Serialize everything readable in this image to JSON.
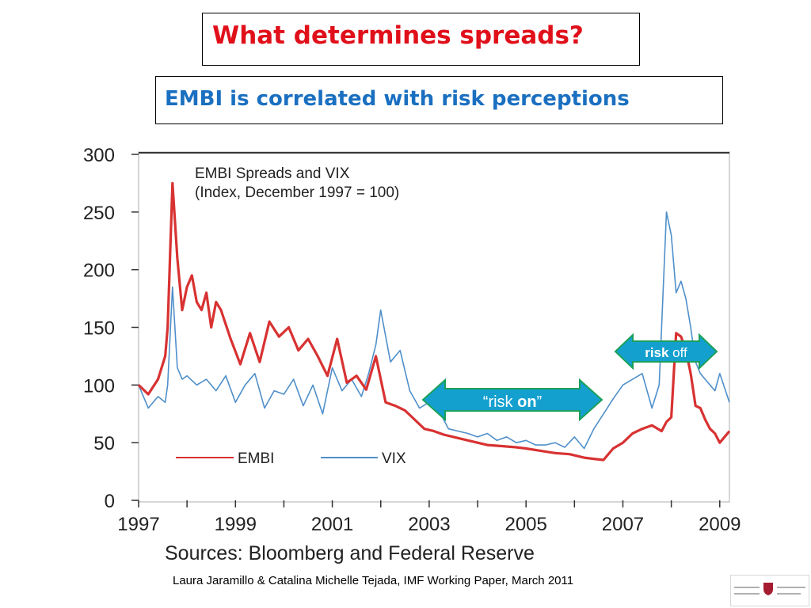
{
  "slide": {
    "title": "What determines spreads?",
    "subtitle": "EMBI is correlated with risk perceptions",
    "footer": "Laura Jaramillo & Catalina Michelle Tejada, IMF Working Paper, March 2011"
  },
  "colors": {
    "title": "#e0101a",
    "subtitle": "#1a6fc0",
    "embi": "#d83232",
    "vix": "#4f8fca",
    "arrow_fill": "#14a0cf",
    "arrow_stroke": "#1aa05a"
  },
  "annotations": {
    "risk_on": {
      "pre": "“risk ",
      "bold": "on",
      "post": "”"
    },
    "risk_off": {
      "bold": "risk",
      "post": " off"
    }
  },
  "chart_data": {
    "type": "line",
    "title": "EMBI Spreads  and VIX",
    "subtitle": "(Index, December 1997 = 100)",
    "source": "Sources: Bloomberg and Federal Reserve",
    "xlim": [
      1997,
      2009.2
    ],
    "ylim": [
      0,
      300
    ],
    "xticks": [
      "1997",
      "1999",
      "2001",
      "2003",
      "2005",
      "2007",
      "2009"
    ],
    "yticks": [
      "0",
      "50",
      "100",
      "150",
      "200",
      "250",
      "300"
    ],
    "grid": false,
    "legend": "bottom-left",
    "series": [
      {
        "name": "EMBI",
        "color": "#d83232",
        "x": [
          1997.0,
          1997.2,
          1997.4,
          1997.55,
          1997.6,
          1997.7,
          1997.8,
          1997.9,
          1998.0,
          1998.1,
          1998.2,
          1998.3,
          1998.4,
          1998.5,
          1998.6,
          1998.7,
          1998.9,
          1999.1,
          1999.3,
          1999.5,
          1999.7,
          1999.9,
          2000.1,
          2000.3,
          2000.5,
          2000.7,
          2000.9,
          2001.1,
          2001.3,
          2001.5,
          2001.7,
          2001.9,
          2002.1,
          2002.3,
          2002.5,
          2002.7,
          2002.9,
          2003.1,
          2003.3,
          2003.5,
          2003.8,
          2004.0,
          2004.2,
          2004.5,
          2004.8,
          2005.0,
          2005.3,
          2005.6,
          2005.9,
          2006.2,
          2006.4,
          2006.6,
          2006.8,
          2007.0,
          2007.2,
          2007.4,
          2007.6,
          2007.8,
          2007.9,
          2008.0,
          2008.1,
          2008.2,
          2008.3,
          2008.4,
          2008.5,
          2008.6,
          2008.7,
          2008.8,
          2008.9,
          2009.0,
          2009.2
        ],
        "values": [
          100,
          92,
          105,
          125,
          150,
          275,
          210,
          165,
          185,
          195,
          172,
          165,
          180,
          150,
          172,
          165,
          140,
          118,
          145,
          120,
          155,
          142,
          150,
          130,
          140,
          125,
          108,
          140,
          102,
          108,
          96,
          125,
          85,
          82,
          78,
          70,
          62,
          60,
          57,
          55,
          52,
          50,
          48,
          47,
          46,
          45,
          43,
          41,
          40,
          37,
          36,
          35,
          45,
          50,
          58,
          62,
          65,
          60,
          68,
          72,
          145,
          142,
          130,
          110,
          82,
          80,
          70,
          62,
          58,
          50,
          60
        ]
      },
      {
        "name": "VIX",
        "color": "#4f8fca",
        "x": [
          1997.0,
          1997.2,
          1997.4,
          1997.55,
          1997.6,
          1997.7,
          1997.8,
          1997.9,
          1998.0,
          1998.2,
          1998.4,
          1998.6,
          1998.8,
          1999.0,
          1999.2,
          1999.4,
          1999.6,
          1999.8,
          2000.0,
          2000.2,
          2000.4,
          2000.6,
          2000.8,
          2001.0,
          2001.2,
          2001.4,
          2001.6,
          2001.75,
          2001.9,
          2002.0,
          2002.2,
          2002.4,
          2002.6,
          2002.8,
          2003.0,
          2003.2,
          2003.4,
          2003.6,
          2003.8,
          2004.0,
          2004.2,
          2004.4,
          2004.6,
          2004.8,
          2005.0,
          2005.2,
          2005.4,
          2005.6,
          2005.8,
          2006.0,
          2006.2,
          2006.4,
          2006.6,
          2006.8,
          2007.0,
          2007.2,
          2007.4,
          2007.6,
          2007.75,
          2007.9,
          2008.0,
          2008.1,
          2008.2,
          2008.3,
          2008.4,
          2008.5,
          2008.6,
          2008.7,
          2008.8,
          2008.9,
          2009.0,
          2009.2
        ],
        "values": [
          100,
          80,
          90,
          85,
          100,
          185,
          115,
          105,
          108,
          100,
          105,
          95,
          108,
          85,
          100,
          110,
          80,
          95,
          92,
          105,
          82,
          100,
          75,
          115,
          95,
          105,
          90,
          110,
          135,
          165,
          120,
          130,
          95,
          80,
          85,
          78,
          62,
          60,
          58,
          55,
          58,
          52,
          55,
          50,
          52,
          48,
          48,
          50,
          46,
          55,
          45,
          62,
          75,
          88,
          100,
          105,
          110,
          80,
          100,
          250,
          230,
          180,
          190,
          175,
          150,
          120,
          110,
          105,
          100,
          95,
          110,
          85
        ]
      }
    ]
  }
}
